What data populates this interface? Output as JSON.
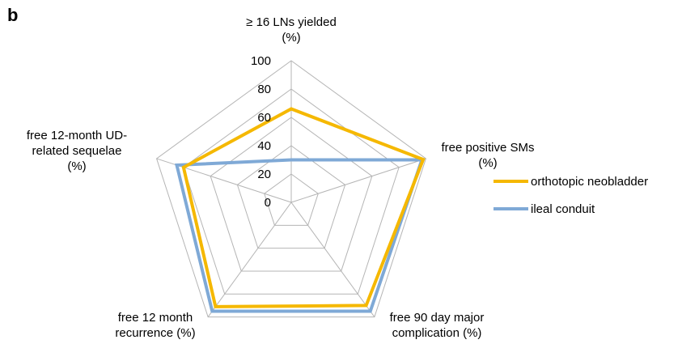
{
  "panel_label": "b",
  "chart_data": {
    "type": "radar",
    "title": "",
    "axes": [
      [
        "≥ 16 LNs yielded",
        "(%)"
      ],
      [
        "free positive SMs",
        "(%)"
      ],
      [
        "free 90 day major",
        "complication (%)"
      ],
      [
        "free 12 month",
        "recurrence (%)"
      ],
      [
        "free 12-month UD-",
        "related sequelae",
        "(%)"
      ]
    ],
    "ticks": [
      "0",
      "20",
      "40",
      "60",
      "80",
      "100"
    ],
    "range": [
      0,
      100
    ],
    "grid": true,
    "legend_position": "right",
    "series": [
      {
        "name": "orthotopic neobladder",
        "color": "#f5b800",
        "values": [
          66,
          98,
          90,
          91,
          80
        ]
      },
      {
        "name": "ileal conduit",
        "color": "#7fa9d6",
        "values": [
          30,
          97,
          95,
          95,
          85
        ]
      }
    ]
  }
}
